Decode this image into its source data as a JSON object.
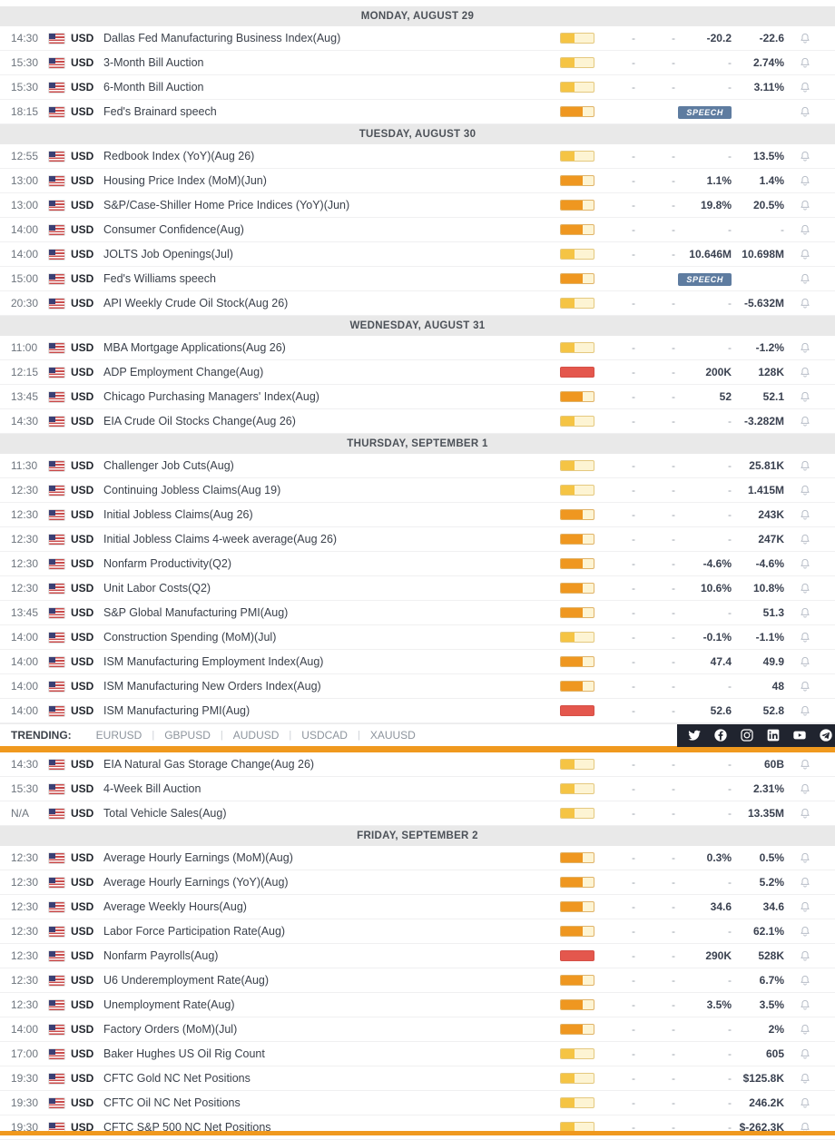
{
  "colors": {
    "impact_low": "#f5c444",
    "impact_medium": "#ef9720",
    "impact_high": "#e4574d",
    "accent_orange": "#f0991e",
    "speech_badge": "#5e7ca0",
    "social_bar_bg": "#20242f",
    "day_header_bg": "#e9e9e9"
  },
  "trending": {
    "label": "TRENDING:",
    "separator": "|",
    "pairs": [
      "EURUSD",
      "GBPUSD",
      "AUDUSD",
      "USDCAD",
      "XAUUSD"
    ],
    "social_icons": [
      "twitter",
      "facebook",
      "instagram",
      "linkedin",
      "youtube",
      "telegram"
    ]
  },
  "calendar": {
    "columns": [
      "actual",
      "deviation",
      "consensus",
      "previous"
    ],
    "sections": [
      {
        "type": "day",
        "label": "MONDAY, AUGUST 29"
      },
      {
        "type": "event",
        "time": "14:30",
        "currency": "USD",
        "name": "Dallas Fed Manufacturing Business Index(Aug)",
        "impact": "low",
        "actual": "-",
        "deviation": "-",
        "consensus": "-20.2",
        "previous": "-22.6"
      },
      {
        "type": "event",
        "time": "15:30",
        "currency": "USD",
        "name": "3-Month Bill Auction",
        "impact": "low",
        "actual": "-",
        "deviation": "-",
        "consensus": "-",
        "previous": "2.74%"
      },
      {
        "type": "event",
        "time": "15:30",
        "currency": "USD",
        "name": "6-Month Bill Auction",
        "impact": "low",
        "actual": "-",
        "deviation": "-",
        "consensus": "-",
        "previous": "3.11%"
      },
      {
        "type": "event",
        "time": "18:15",
        "currency": "USD",
        "name": "Fed's Brainard speech",
        "impact": "medium",
        "speech": true,
        "speech_label": "SPEECH"
      },
      {
        "type": "day",
        "label": "TUESDAY, AUGUST 30"
      },
      {
        "type": "event",
        "time": "12:55",
        "currency": "USD",
        "name": "Redbook Index (YoY)(Aug 26)",
        "impact": "low",
        "actual": "-",
        "deviation": "-",
        "consensus": "-",
        "previous": "13.5%"
      },
      {
        "type": "event",
        "time": "13:00",
        "currency": "USD",
        "name": "Housing Price Index (MoM)(Jun)",
        "impact": "medium",
        "actual": "-",
        "deviation": "-",
        "consensus": "1.1%",
        "previous": "1.4%"
      },
      {
        "type": "event",
        "time": "13:00",
        "currency": "USD",
        "name": "S&P/Case-Shiller Home Price Indices (YoY)(Jun)",
        "impact": "medium",
        "actual": "-",
        "deviation": "-",
        "consensus": "19.8%",
        "previous": "20.5%"
      },
      {
        "type": "event",
        "time": "14:00",
        "currency": "USD",
        "name": "Consumer Confidence(Aug)",
        "impact": "medium",
        "actual": "-",
        "deviation": "-",
        "consensus": "-",
        "previous": "-"
      },
      {
        "type": "event",
        "time": "14:00",
        "currency": "USD",
        "name": "JOLTS Job Openings(Jul)",
        "impact": "low",
        "actual": "-",
        "deviation": "-",
        "consensus": "10.646M",
        "previous": "10.698M"
      },
      {
        "type": "event",
        "time": "15:00",
        "currency": "USD",
        "name": "Fed's Williams speech",
        "impact": "medium",
        "speech": true,
        "speech_label": "SPEECH"
      },
      {
        "type": "event",
        "time": "20:30",
        "currency": "USD",
        "name": "API Weekly Crude Oil Stock(Aug 26)",
        "impact": "low",
        "actual": "-",
        "deviation": "-",
        "consensus": "-",
        "previous": "-5.632M"
      },
      {
        "type": "day",
        "label": "WEDNESDAY, AUGUST 31"
      },
      {
        "type": "event",
        "time": "11:00",
        "currency": "USD",
        "name": "MBA Mortgage Applications(Aug 26)",
        "impact": "low",
        "actual": "-",
        "deviation": "-",
        "consensus": "-",
        "previous": "-1.2%"
      },
      {
        "type": "event",
        "time": "12:15",
        "currency": "USD",
        "name": "ADP Employment Change(Aug)",
        "impact": "high",
        "actual": "-",
        "deviation": "-",
        "consensus": "200K",
        "previous": "128K"
      },
      {
        "type": "event",
        "time": "13:45",
        "currency": "USD",
        "name": "Chicago Purchasing Managers' Index(Aug)",
        "impact": "medium",
        "actual": "-",
        "deviation": "-",
        "consensus": "52",
        "previous": "52.1"
      },
      {
        "type": "event",
        "time": "14:30",
        "currency": "USD",
        "name": "EIA Crude Oil Stocks Change(Aug 26)",
        "impact": "low",
        "actual": "-",
        "deviation": "-",
        "consensus": "-",
        "previous": "-3.282M"
      },
      {
        "type": "day",
        "label": "THURSDAY, SEPTEMBER 1"
      },
      {
        "type": "event",
        "time": "11:30",
        "currency": "USD",
        "name": "Challenger Job Cuts(Aug)",
        "impact": "low",
        "actual": "-",
        "deviation": "-",
        "consensus": "-",
        "previous": "25.81K"
      },
      {
        "type": "event",
        "time": "12:30",
        "currency": "USD",
        "name": "Continuing Jobless Claims(Aug 19)",
        "impact": "low",
        "actual": "-",
        "deviation": "-",
        "consensus": "-",
        "previous": "1.415M"
      },
      {
        "type": "event",
        "time": "12:30",
        "currency": "USD",
        "name": "Initial Jobless Claims(Aug 26)",
        "impact": "medium",
        "actual": "-",
        "deviation": "-",
        "consensus": "-",
        "previous": "243K"
      },
      {
        "type": "event",
        "time": "12:30",
        "currency": "USD",
        "name": "Initial Jobless Claims 4-week average(Aug 26)",
        "impact": "medium",
        "actual": "-",
        "deviation": "-",
        "consensus": "-",
        "previous": "247K"
      },
      {
        "type": "event",
        "time": "12:30",
        "currency": "USD",
        "name": "Nonfarm Productivity(Q2)",
        "impact": "medium",
        "actual": "-",
        "deviation": "-",
        "consensus": "-4.6%",
        "previous": "-4.6%"
      },
      {
        "type": "event",
        "time": "12:30",
        "currency": "USD",
        "name": "Unit Labor Costs(Q2)",
        "impact": "medium",
        "actual": "-",
        "deviation": "-",
        "consensus": "10.6%",
        "previous": "10.8%"
      },
      {
        "type": "event",
        "time": "13:45",
        "currency": "USD",
        "name": "S&P Global Manufacturing PMI(Aug)",
        "impact": "medium",
        "actual": "-",
        "deviation": "-",
        "consensus": "-",
        "previous": "51.3"
      },
      {
        "type": "event",
        "time": "14:00",
        "currency": "USD",
        "name": "Construction Spending (MoM)(Jul)",
        "impact": "low",
        "actual": "-",
        "deviation": "-",
        "consensus": "-0.1%",
        "previous": "-1.1%"
      },
      {
        "type": "event",
        "time": "14:00",
        "currency": "USD",
        "name": "ISM Manufacturing Employment Index(Aug)",
        "impact": "medium",
        "actual": "-",
        "deviation": "-",
        "consensus": "47.4",
        "previous": "49.9"
      },
      {
        "type": "event",
        "time": "14:00",
        "currency": "USD",
        "name": "ISM Manufacturing New Orders Index(Aug)",
        "impact": "medium",
        "actual": "-",
        "deviation": "-",
        "consensus": "-",
        "previous": "48"
      },
      {
        "type": "event",
        "time": "14:00",
        "currency": "USD",
        "name": "ISM Manufacturing PMI(Aug)",
        "impact": "high",
        "actual": "-",
        "deviation": "-",
        "consensus": "52.6",
        "previous": "52.8"
      },
      {
        "type": "trending"
      },
      {
        "type": "divider"
      },
      {
        "type": "event",
        "time": "14:30",
        "currency": "USD",
        "name": "EIA Natural Gas Storage Change(Aug 26)",
        "impact": "low",
        "actual": "-",
        "deviation": "-",
        "consensus": "-",
        "previous": "60B"
      },
      {
        "type": "event",
        "time": "15:30",
        "currency": "USD",
        "name": "4-Week Bill Auction",
        "impact": "low",
        "actual": "-",
        "deviation": "-",
        "consensus": "-",
        "previous": "2.31%"
      },
      {
        "type": "event",
        "time": "N/A",
        "currency": "USD",
        "name": "Total Vehicle Sales(Aug)",
        "impact": "low",
        "actual": "-",
        "deviation": "-",
        "consensus": "-",
        "previous": "13.35M"
      },
      {
        "type": "day",
        "label": "FRIDAY, SEPTEMBER 2"
      },
      {
        "type": "event",
        "time": "12:30",
        "currency": "USD",
        "name": "Average Hourly Earnings (MoM)(Aug)",
        "impact": "medium",
        "actual": "-",
        "deviation": "-",
        "consensus": "0.3%",
        "previous": "0.5%"
      },
      {
        "type": "event",
        "time": "12:30",
        "currency": "USD",
        "name": "Average Hourly Earnings (YoY)(Aug)",
        "impact": "medium",
        "actual": "-",
        "deviation": "-",
        "consensus": "-",
        "previous": "5.2%"
      },
      {
        "type": "event",
        "time": "12:30",
        "currency": "USD",
        "name": "Average Weekly Hours(Aug)",
        "impact": "medium",
        "actual": "-",
        "deviation": "-",
        "consensus": "34.6",
        "previous": "34.6"
      },
      {
        "type": "event",
        "time": "12:30",
        "currency": "USD",
        "name": "Labor Force Participation Rate(Aug)",
        "impact": "medium",
        "actual": "-",
        "deviation": "-",
        "consensus": "-",
        "previous": "62.1%"
      },
      {
        "type": "event",
        "time": "12:30",
        "currency": "USD",
        "name": "Nonfarm Payrolls(Aug)",
        "impact": "high",
        "actual": "-",
        "deviation": "-",
        "consensus": "290K",
        "previous": "528K"
      },
      {
        "type": "event",
        "time": "12:30",
        "currency": "USD",
        "name": "U6 Underemployment Rate(Aug)",
        "impact": "medium",
        "actual": "-",
        "deviation": "-",
        "consensus": "-",
        "previous": "6.7%"
      },
      {
        "type": "event",
        "time": "12:30",
        "currency": "USD",
        "name": "Unemployment Rate(Aug)",
        "impact": "medium",
        "actual": "-",
        "deviation": "-",
        "consensus": "3.5%",
        "previous": "3.5%"
      },
      {
        "type": "event",
        "time": "14:00",
        "currency": "USD",
        "name": "Factory Orders (MoM)(Jul)",
        "impact": "medium",
        "actual": "-",
        "deviation": "-",
        "consensus": "-",
        "previous": "2%"
      },
      {
        "type": "event",
        "time": "17:00",
        "currency": "USD",
        "name": "Baker Hughes US Oil Rig Count",
        "impact": "low",
        "actual": "-",
        "deviation": "-",
        "consensus": "-",
        "previous": "605"
      },
      {
        "type": "event",
        "time": "19:30",
        "currency": "USD",
        "name": "CFTC Gold NC Net Positions",
        "impact": "low",
        "actual": "-",
        "deviation": "-",
        "consensus": "-",
        "previous": "$125.8K"
      },
      {
        "type": "event",
        "time": "19:30",
        "currency": "USD",
        "name": "CFTC Oil NC Net Positions",
        "impact": "low",
        "actual": "-",
        "deviation": "-",
        "consensus": "-",
        "previous": "246.2K"
      },
      {
        "type": "event",
        "time": "19:30",
        "currency": "USD",
        "name": "CFTC S&P 500 NC Net Positions",
        "impact": "low",
        "actual": "-",
        "deviation": "-",
        "consensus": "-",
        "previous": "$-262.3K"
      }
    ]
  }
}
